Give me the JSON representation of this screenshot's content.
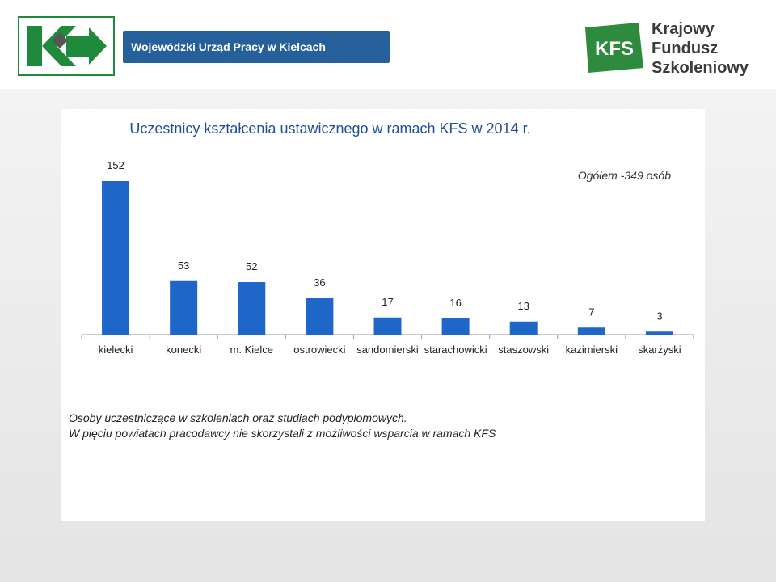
{
  "header": {
    "wup_name": "Wojewódzki Urząd Pracy w Kielcach",
    "kfs_short": "KFS",
    "kfs_name_lines": [
      "Krajowy",
      "Fundusz",
      "Szkoleniowy"
    ]
  },
  "notes": {
    "line1": "Osoby uczestniczące w szkoleniach oraz studiach podyplomowych.",
    "line2": "W pięciu powiatach pracodawcy nie skorzystali z możliwości wsparcia w ramach KFS"
  },
  "colors": {
    "bar": "#1e66c7",
    "title": "#1f4e9a",
    "brand_green": "#1f8a3c",
    "brand_blue": "#25609b"
  },
  "chart_data": {
    "type": "bar",
    "title": "Uczestnicy kształcenia ustawicznego w ramach KFS w 2014 r.",
    "annotation": "Ogółem -349 osób",
    "categories": [
      "kielecki",
      "konecki",
      "m. Kielce",
      "ostrowiecki",
      "sandomierski",
      "starachowicki",
      "staszowski",
      "kazimierski",
      "skarżyski"
    ],
    "values": [
      152,
      53,
      52,
      36,
      17,
      16,
      13,
      7,
      3
    ],
    "xlabel": "",
    "ylabel": "",
    "ylim": [
      0,
      152
    ],
    "grid": false,
    "legend": "none"
  }
}
